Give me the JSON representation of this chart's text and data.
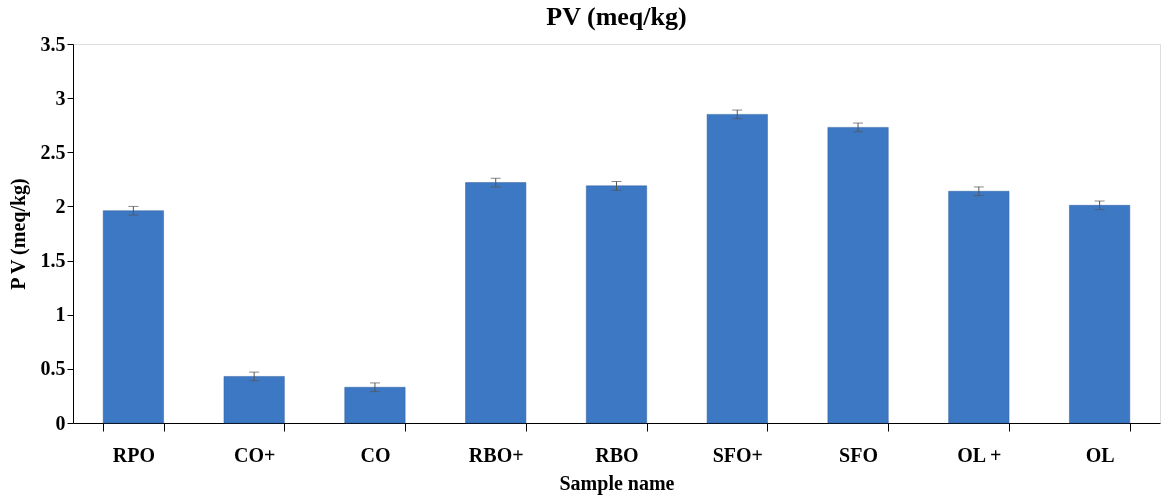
{
  "chart_data": {
    "type": "bar",
    "title": "PV (meq/kg)",
    "xlabel": "Sample name",
    "ylabel": "P V (meq/kg)",
    "categories": [
      "RPO",
      "CO+",
      "CO",
      "RBO+",
      "RBO",
      "SFO+",
      "SFO",
      "OL +",
      "OL"
    ],
    "values": [
      1.96,
      0.43,
      0.33,
      2.22,
      2.19,
      2.85,
      2.73,
      2.14,
      2.01
    ],
    "errors": [
      0.04,
      0.04,
      0.04,
      0.04,
      0.04,
      0.04,
      0.04,
      0.04,
      0.04
    ],
    "color": "#3d78c4",
    "ylim": [
      0,
      3.5
    ],
    "yticks": [
      0,
      0.5,
      1,
      1.5,
      2,
      2.5,
      3,
      3.5
    ]
  }
}
